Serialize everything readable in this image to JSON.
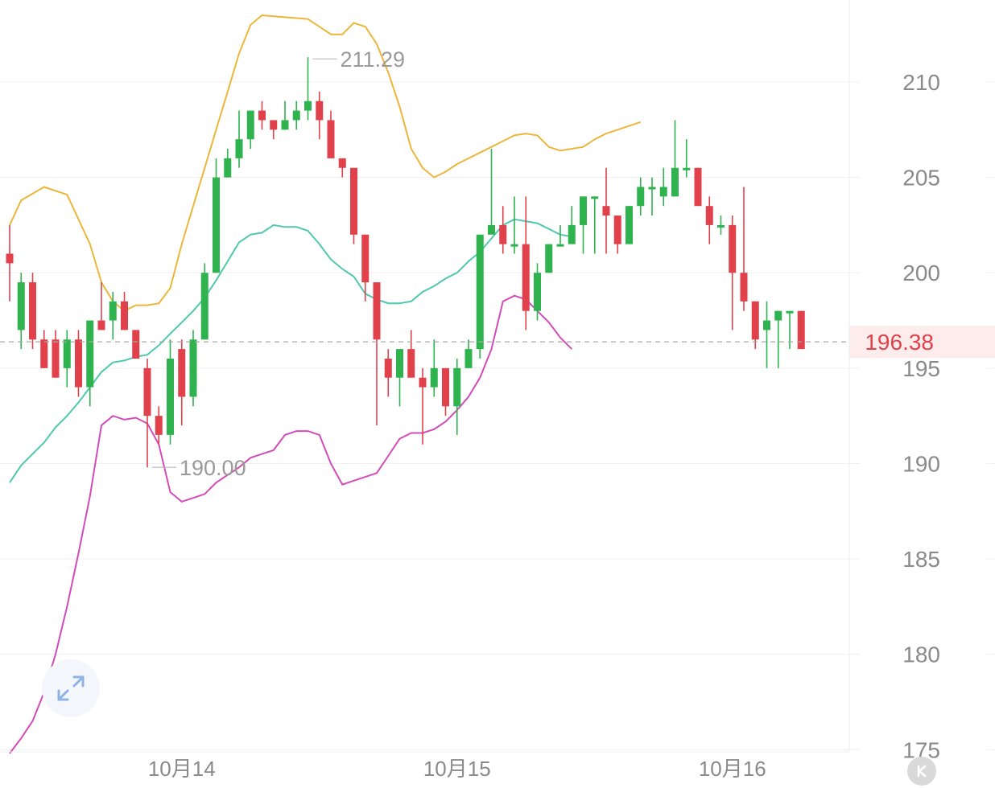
{
  "chart_data": {
    "type": "candlestick",
    "title": "",
    "y_ticks": [
      210,
      205,
      200,
      195,
      190,
      185,
      180,
      175
    ],
    "ylim": [
      173.2,
      214.3
    ],
    "x_ticks": [
      "10月14",
      "10月15",
      "10月16"
    ],
    "last_price": "196.38",
    "annotations": {
      "high": "211.29",
      "low": "190.00"
    },
    "candles": [
      [
        201.0,
        200.5,
        202.5,
        198.5
      ],
      [
        197.0,
        199.5,
        200.0,
        196.0
      ],
      [
        199.5,
        196.5,
        200.0,
        196.0
      ],
      [
        196.5,
        195.0,
        197.0,
        195.0
      ],
      [
        196.5,
        194.5,
        197.0,
        194.5
      ],
      [
        195.0,
        196.5,
        197.0,
        194.0
      ],
      [
        196.5,
        194.0,
        197.0,
        193.5
      ],
      [
        194.0,
        197.5,
        197.5,
        193.0
      ],
      [
        197.5,
        197.0,
        199.5,
        197.0
      ],
      [
        197.5,
        198.5,
        199.0,
        196.5
      ],
      [
        198.5,
        197.0,
        199.0,
        197.0
      ],
      [
        197.0,
        195.5,
        197.0,
        195.5
      ],
      [
        195.0,
        192.5,
        195.5,
        189.8
      ],
      [
        192.5,
        191.5,
        193.0,
        191.0
      ],
      [
        191.5,
        195.5,
        196.5,
        191.0
      ],
      [
        196.0,
        193.5,
        196.5,
        192.0
      ],
      [
        193.5,
        196.5,
        197.0,
        193.0
      ],
      [
        196.5,
        200.0,
        200.5,
        196.5
      ],
      [
        200.0,
        205.0,
        206.0,
        200.0
      ],
      [
        205.0,
        206.0,
        206.5,
        205.0
      ],
      [
        206.0,
        207.0,
        208.5,
        205.5
      ],
      [
        207.0,
        208.5,
        208.5,
        206.5
      ],
      [
        208.5,
        208.0,
        209.0,
        207.5
      ],
      [
        208.0,
        207.5,
        208.0,
        207.0
      ],
      [
        207.5,
        208.0,
        209.0,
        207.5
      ],
      [
        208.0,
        208.5,
        209.0,
        207.5
      ],
      [
        208.5,
        209.0,
        211.3,
        208.0
      ],
      [
        209.0,
        208.0,
        209.5,
        207.0
      ],
      [
        208.0,
        206.0,
        208.5,
        206.0
      ],
      [
        206.0,
        205.5,
        206.0,
        205.0
      ],
      [
        205.5,
        202.0,
        205.5,
        201.5
      ],
      [
        202.0,
        199.5,
        202.0,
        198.5
      ],
      [
        199.5,
        196.5,
        199.5,
        192.0
      ],
      [
        195.5,
        194.5,
        196.0,
        193.5
      ],
      [
        194.5,
        196.0,
        196.0,
        193.0
      ],
      [
        196.0,
        194.5,
        197.0,
        194.5
      ],
      [
        194.5,
        194.0,
        195.0,
        191.0
      ],
      [
        194.0,
        195.0,
        196.5,
        193.5
      ],
      [
        195.0,
        193.0,
        195.0,
        192.5
      ],
      [
        193.0,
        195.0,
        195.5,
        191.5
      ],
      [
        195.0,
        196.0,
        196.5,
        195.0
      ],
      [
        196.0,
        202.0,
        202.0,
        195.5
      ],
      [
        202.0,
        202.5,
        206.5,
        202.5
      ],
      [
        202.5,
        201.5,
        203.5,
        201.0
      ],
      [
        201.5,
        201.5,
        204.0,
        201.0
      ],
      [
        201.5,
        198.0,
        204.0,
        197.0
      ],
      [
        198.0,
        200.0,
        200.5,
        197.5
      ],
      [
        200.0,
        201.5,
        201.5,
        200.0
      ],
      [
        201.5,
        201.5,
        202.5,
        201.5
      ],
      [
        201.5,
        202.5,
        203.5,
        202.0
      ],
      [
        202.5,
        204.0,
        204.0,
        201.0
      ],
      [
        204.0,
        204.0,
        204.0,
        201.0
      ],
      [
        203.5,
        203.0,
        205.5,
        201.0
      ],
      [
        203.0,
        201.5,
        203.0,
        201.0
      ],
      [
        201.5,
        203.5,
        203.5,
        201.5
      ],
      [
        203.5,
        204.5,
        205.0,
        203.0
      ],
      [
        204.5,
        204.5,
        205.0,
        203.0
      ],
      [
        204.0,
        204.5,
        205.5,
        203.5
      ],
      [
        204.0,
        205.5,
        208.0,
        204.0
      ],
      [
        205.5,
        205.5,
        207.0,
        205.0
      ],
      [
        205.5,
        203.5,
        205.5,
        203.5
      ],
      [
        203.5,
        202.5,
        204.0,
        201.5
      ],
      [
        202.5,
        202.5,
        203.0,
        202.0
      ],
      [
        202.5,
        200.0,
        203.0,
        197.0
      ],
      [
        200.0,
        198.5,
        204.5,
        198.0
      ],
      [
        198.5,
        196.5,
        198.5,
        196.0
      ],
      [
        197.0,
        197.5,
        198.5,
        195.0
      ],
      [
        197.5,
        198.0,
        198.0,
        195.0
      ],
      [
        198.0,
        198.0,
        198.0,
        196.0
      ],
      [
        198.0,
        196.0,
        198.0,
        196.0
      ]
    ],
    "series": [
      {
        "name": "upper",
        "color": "#ecb63a",
        "points": [
          [
            0,
            202.5
          ],
          [
            1,
            203.8
          ],
          [
            3,
            204.5
          ],
          [
            5,
            204.1
          ],
          [
            7,
            201.5
          ],
          [
            8,
            199.5
          ],
          [
            9,
            198.5
          ],
          [
            10,
            198.0
          ],
          [
            11,
            198.3
          ],
          [
            12,
            198.3
          ],
          [
            13,
            198.4
          ],
          [
            14,
            199.2
          ],
          [
            15,
            201.5
          ],
          [
            16,
            203.5
          ],
          [
            17,
            205.5
          ],
          [
            18,
            207.5
          ],
          [
            19,
            209.5
          ],
          [
            20,
            211.5
          ],
          [
            21,
            213.0
          ],
          [
            22,
            213.5
          ],
          [
            24,
            213.4
          ],
          [
            26,
            213.3
          ],
          [
            27,
            212.9
          ],
          [
            28,
            212.5
          ],
          [
            29,
            212.5
          ],
          [
            30,
            213.1
          ],
          [
            31,
            212.9
          ],
          [
            32,
            212.0
          ],
          [
            33,
            210.5
          ],
          [
            34,
            208.7
          ],
          [
            35,
            206.5
          ],
          [
            36,
            205.5
          ],
          [
            37,
            205.0
          ],
          [
            38,
            205.3
          ],
          [
            39,
            205.7
          ],
          [
            40,
            206.0
          ],
          [
            41,
            206.3
          ],
          [
            42,
            206.6
          ],
          [
            43,
            206.9
          ],
          [
            44,
            207.2
          ],
          [
            45,
            207.3
          ],
          [
            46,
            207.2
          ],
          [
            47,
            206.6
          ],
          [
            48,
            206.4
          ],
          [
            49,
            206.5
          ],
          [
            50,
            206.6
          ],
          [
            51,
            207.0
          ],
          [
            52,
            207.3
          ],
          [
            53,
            207.5
          ],
          [
            54,
            207.7
          ],
          [
            55,
            207.9
          ]
        ]
      },
      {
        "name": "middle",
        "color": "#4ec9ad",
        "points": [
          [
            0,
            189.0
          ],
          [
            1,
            189.9
          ],
          [
            2,
            190.5
          ],
          [
            3,
            191.1
          ],
          [
            4,
            191.9
          ],
          [
            5,
            192.5
          ],
          [
            6,
            193.2
          ],
          [
            7,
            194.0
          ],
          [
            8,
            194.8
          ],
          [
            9,
            195.3
          ],
          [
            10,
            195.4
          ],
          [
            11,
            195.6
          ],
          [
            12,
            195.7
          ],
          [
            13,
            196.2
          ],
          [
            14,
            196.8
          ],
          [
            15,
            197.4
          ],
          [
            16,
            198.0
          ],
          [
            17,
            198.7
          ],
          [
            18,
            199.6
          ],
          [
            19,
            200.6
          ],
          [
            20,
            201.6
          ],
          [
            21,
            202.0
          ],
          [
            22,
            202.1
          ],
          [
            23,
            202.5
          ],
          [
            24,
            202.4
          ],
          [
            25,
            202.4
          ],
          [
            26,
            202.2
          ],
          [
            27,
            201.5
          ],
          [
            28,
            200.7
          ],
          [
            29,
            200.2
          ],
          [
            30,
            199.8
          ],
          [
            31,
            198.9
          ],
          [
            32,
            198.6
          ],
          [
            33,
            198.4
          ],
          [
            34,
            198.4
          ],
          [
            35,
            198.5
          ],
          [
            36,
            199.0
          ],
          [
            37,
            199.3
          ],
          [
            38,
            199.7
          ],
          [
            39,
            200.0
          ],
          [
            40,
            200.6
          ],
          [
            41,
            201.1
          ],
          [
            42,
            201.8
          ],
          [
            43,
            202.5
          ],
          [
            44,
            202.8
          ],
          [
            45,
            202.7
          ],
          [
            46,
            202.6
          ],
          [
            47,
            202.3
          ],
          [
            48,
            202.0
          ],
          [
            49,
            201.9
          ]
        ]
      },
      {
        "name": "lower",
        "color": "#d34bb8",
        "points": [
          [
            0,
            174.8
          ],
          [
            1,
            175.6
          ],
          [
            2,
            176.5
          ],
          [
            3,
            178.0
          ],
          [
            4,
            180.0
          ],
          [
            5,
            182.5
          ],
          [
            6,
            185.3
          ],
          [
            7,
            188.3
          ],
          [
            8,
            192.0
          ],
          [
            9,
            192.5
          ],
          [
            10,
            192.3
          ],
          [
            11,
            192.4
          ],
          [
            12,
            192.1
          ],
          [
            13,
            191.0
          ],
          [
            14,
            188.5
          ],
          [
            15,
            188.0
          ],
          [
            16,
            188.2
          ],
          [
            17,
            188.4
          ],
          [
            18,
            189.0
          ],
          [
            19,
            189.4
          ],
          [
            20,
            189.8
          ],
          [
            21,
            190.3
          ],
          [
            22,
            190.5
          ],
          [
            23,
            190.7
          ],
          [
            24,
            191.5
          ],
          [
            25,
            191.7
          ],
          [
            26,
            191.7
          ],
          [
            27,
            191.5
          ],
          [
            28,
            190.0
          ],
          [
            29,
            188.9
          ],
          [
            30,
            189.1
          ],
          [
            31,
            189.3
          ],
          [
            32,
            189.5
          ],
          [
            33,
            190.4
          ],
          [
            34,
            191.3
          ],
          [
            35,
            191.6
          ],
          [
            36,
            191.6
          ],
          [
            37,
            191.8
          ],
          [
            38,
            192.2
          ],
          [
            39,
            192.8
          ],
          [
            40,
            193.5
          ],
          [
            41,
            194.5
          ],
          [
            42,
            196.0
          ],
          [
            43,
            198.5
          ],
          [
            44,
            198.8
          ],
          [
            45,
            198.6
          ],
          [
            46,
            198.0
          ],
          [
            47,
            197.4
          ],
          [
            48,
            196.6
          ],
          [
            49,
            196.0
          ]
        ]
      }
    ]
  }
}
